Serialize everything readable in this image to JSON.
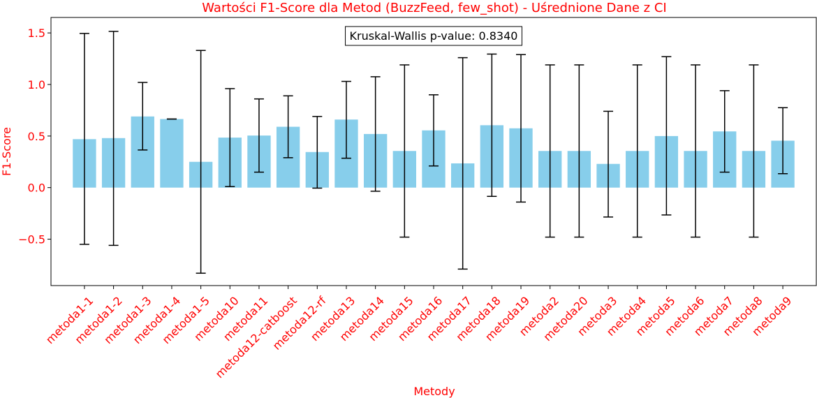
{
  "chart_data": {
    "type": "bar",
    "title": "Wartości F1-Score dla Metod (BuzzFeed, few_shot) - Uśrednione Dane z CI",
    "xlabel": "Metody",
    "ylabel": "F1-Score",
    "ylim": [
      -0.95,
      1.65
    ],
    "yticks": [
      -0.5,
      0.0,
      0.5,
      1.0,
      1.5
    ],
    "ytick_labels": [
      "−0.5",
      "0.0",
      "0.5",
      "1.0",
      "1.5"
    ],
    "grid": false,
    "bar_color": "#87ceeb",
    "errorbar_color": "#000000",
    "label_color": "#ff0000",
    "categories": [
      "metoda1-1",
      "metoda1-2",
      "metoda1-3",
      "metoda1-4",
      "metoda1-5",
      "metoda10",
      "metoda11",
      "metoda12-catboost",
      "metoda12-rf",
      "metoda13",
      "metoda14",
      "metoda15",
      "metoda16",
      "metoda17",
      "metoda18",
      "metoda19",
      "metoda2",
      "metoda20",
      "metoda3",
      "metoda4",
      "metoda5",
      "metoda6",
      "metoda7",
      "metoda8",
      "metoda9"
    ],
    "values": [
      0.47,
      0.48,
      0.69,
      0.665,
      0.25,
      0.485,
      0.505,
      0.59,
      0.345,
      0.66,
      0.52,
      0.355,
      0.555,
      0.235,
      0.605,
      0.575,
      0.355,
      0.355,
      0.23,
      0.355,
      0.5,
      0.355,
      0.545,
      0.355,
      0.455
    ],
    "ci_low": [
      -0.55,
      -0.56,
      0.365,
      0.665,
      -0.83,
      0.01,
      0.15,
      0.29,
      -0.005,
      0.285,
      -0.035,
      -0.48,
      0.21,
      -0.79,
      -0.085,
      -0.14,
      -0.48,
      -0.48,
      -0.285,
      -0.48,
      -0.265,
      -0.48,
      0.15,
      -0.48,
      0.135
    ],
    "ci_high": [
      1.495,
      1.515,
      1.02,
      0.665,
      1.33,
      0.96,
      0.86,
      0.89,
      0.69,
      1.03,
      1.075,
      1.19,
      0.9,
      1.26,
      1.295,
      1.29,
      1.19,
      1.19,
      0.74,
      1.19,
      1.27,
      1.19,
      0.94,
      1.19,
      0.775
    ],
    "annotation": {
      "text": "Kruskal-Wallis p-value: 0.8340",
      "position": "top-center"
    }
  }
}
